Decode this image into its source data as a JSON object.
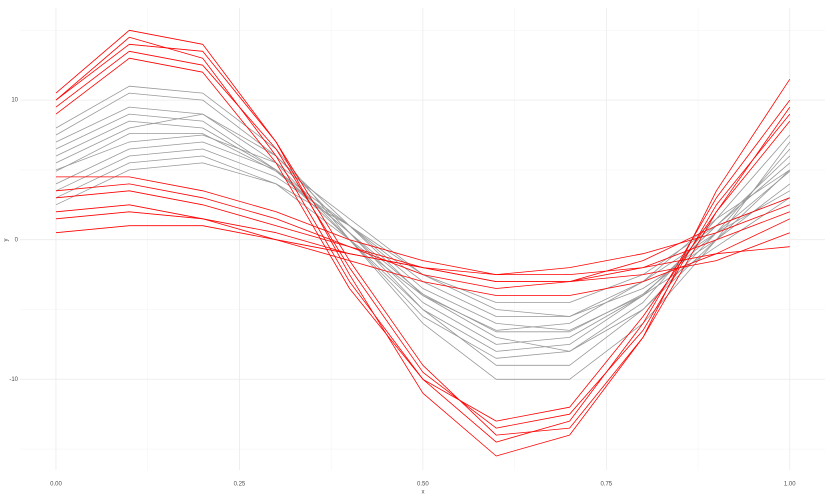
{
  "chart_data": {
    "type": "line",
    "x_label": "x",
    "y_label": "y",
    "x": [
      0,
      0.1,
      0.2,
      0.3,
      0.4,
      0.5,
      0.6,
      0.7,
      0.8,
      0.9,
      1.0
    ],
    "xlim": [
      -0.049,
      1.048
    ],
    "ylim": [
      -16.5,
      16.6
    ],
    "xticks": [
      {
        "value": 0,
        "label": "0.00"
      },
      {
        "value": 0.25,
        "label": "0.25"
      },
      {
        "value": 0.5,
        "label": "0.50"
      },
      {
        "value": 0.75,
        "label": "0.75"
      },
      {
        "value": 1,
        "label": "1.00"
      }
    ],
    "yticks": [
      -10,
      0,
      10
    ],
    "xminorticks": [
      0.125,
      0.375,
      0.625,
      0.875
    ],
    "yminorticks": [
      -15,
      -5,
      5,
      15
    ],
    "grid": true,
    "series": [
      {
        "color": "#999999",
        "values": [
          4.9,
          7.6,
          7.6,
          4.9,
          0.5,
          -3.9,
          -6.6,
          -6.6,
          -3.9,
          0.5,
          4.9
        ]
      },
      {
        "color": "#999999",
        "values": [
          6.5,
          9,
          8.5,
          5,
          0,
          -5,
          -8,
          -7.5,
          -4,
          1,
          5.5
        ]
      },
      {
        "color": "#999999",
        "values": [
          3.5,
          6,
          6.5,
          4.5,
          1,
          -3,
          -5.5,
          -5.5,
          -3,
          0.5,
          3.5
        ]
      },
      {
        "color": "#999999",
        "values": [
          7.5,
          10.5,
          10,
          6,
          0.5,
          -5,
          -9,
          -9,
          -5,
          0.5,
          6.5
        ]
      },
      {
        "color": "#999999",
        "values": [
          5,
          7,
          7.5,
          5.5,
          1.5,
          -2.5,
          -5,
          -5.5,
          -3.5,
          0,
          4
        ]
      },
      {
        "color": "#999999",
        "values": [
          2.5,
          5,
          5.5,
          4,
          1,
          -2.5,
          -4.5,
          -4.5,
          -2.5,
          1,
          3
        ]
      },
      {
        "color": "#999999",
        "values": [
          8,
          11,
          10.5,
          6.5,
          0,
          -6,
          -10,
          -10,
          -6,
          0,
          7
        ]
      },
      {
        "color": "#999999",
        "values": [
          6,
          8.5,
          8,
          5,
          0.5,
          -4.5,
          -7.5,
          -7,
          -4,
          1,
          6
        ]
      },
      {
        "color": "#999999",
        "values": [
          4,
          6.5,
          7,
          5,
          1,
          -3.5,
          -6,
          -6.5,
          -4,
          -0.5,
          3
        ]
      },
      {
        "color": "#999999",
        "values": [
          5.5,
          8,
          9,
          6,
          1,
          -4,
          -7,
          -8,
          -5,
          0,
          5
        ]
      },
      {
        "color": "#999999",
        "values": [
          7,
          9.5,
          9,
          5.5,
          0,
          -5.5,
          -8.5,
          -8,
          -4.5,
          1.5,
          7.5
        ]
      },
      {
        "color": "#999999",
        "values": [
          3,
          5.5,
          6,
          4,
          0,
          -4,
          -6.5,
          -6,
          -3,
          1.5,
          5
        ]
      },
      {
        "color": "#ff0000",
        "values": [
          10,
          14.5,
          13,
          6,
          -3,
          -10,
          -14.5,
          -13,
          -6,
          3,
          10
        ]
      },
      {
        "color": "#ff0000",
        "values": [
          9.5,
          13.5,
          12.5,
          6.5,
          -2,
          -9.5,
          -13.5,
          -12.5,
          -6.5,
          2.5,
          9
        ]
      },
      {
        "color": "#ff0000",
        "values": [
          10.5,
          15,
          14,
          7,
          -2.5,
          -11,
          -15.5,
          -14,
          -7,
          3.5,
          11.5
        ]
      },
      {
        "color": "#ff0000",
        "values": [
          9,
          13,
          12,
          5.5,
          -3.5,
          -10,
          -13,
          -12,
          -5.5,
          2,
          8.5
        ]
      },
      {
        "color": "#ff0000",
        "values": [
          10,
          14,
          13.5,
          7,
          -1.5,
          -9,
          -14,
          -13.5,
          -7,
          2,
          9.5
        ]
      },
      {
        "color": "#ff0000",
        "values": [
          3,
          3.5,
          2.5,
          1,
          -0.5,
          -2,
          -3,
          -3,
          -2,
          0,
          2
        ]
      },
      {
        "color": "#ff0000",
        "values": [
          4.5,
          4.5,
          3.5,
          2,
          0,
          -1.5,
          -2.5,
          -2,
          -1,
          0.5,
          2.5
        ]
      },
      {
        "color": "#ff0000",
        "values": [
          2,
          2.5,
          1.5,
          0,
          -1.5,
          -3,
          -4,
          -4,
          -3,
          -1,
          1.5
        ]
      },
      {
        "color": "#ff0000",
        "values": [
          0.5,
          1,
          1,
          0,
          -1,
          -2,
          -2.5,
          -2.5,
          -2,
          -1,
          -0.5
        ]
      },
      {
        "color": "#ff0000",
        "values": [
          3.5,
          4,
          3,
          1.5,
          -0.5,
          -2.5,
          -3.5,
          -3,
          -1.5,
          1,
          3
        ]
      },
      {
        "color": "#ff0000",
        "values": [
          1.5,
          2,
          1.5,
          0.5,
          -1,
          -2,
          -3,
          -3,
          -2.5,
          -1.5,
          0.5
        ]
      }
    ]
  }
}
